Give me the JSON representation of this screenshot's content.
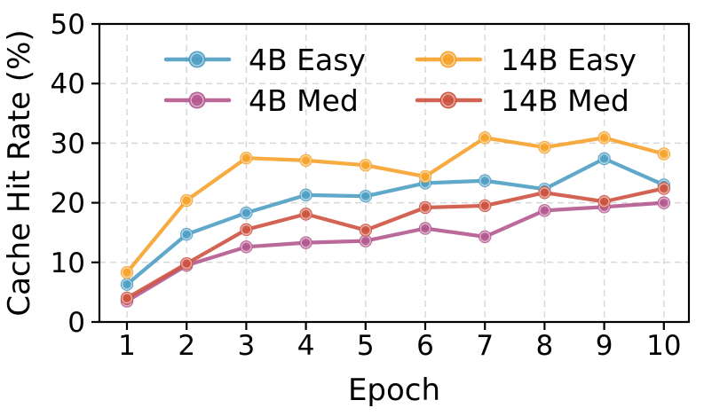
{
  "chart_data": {
    "type": "line",
    "title": "",
    "xlabel": "Epoch",
    "ylabel": "Cache Hit Rate (%)",
    "x": [
      1,
      2,
      3,
      4,
      5,
      6,
      7,
      8,
      9,
      10
    ],
    "xtick_labels": [
      "1",
      "2",
      "3",
      "4",
      "5",
      "6",
      "7",
      "8",
      "9",
      "10"
    ],
    "yticks": [
      0,
      10,
      20,
      30,
      40,
      50
    ],
    "ytick_labels": [
      "0",
      "10",
      "20",
      "30",
      "40",
      "50"
    ],
    "grid_y_values": [
      10,
      20,
      30,
      40
    ],
    "ylim": [
      0,
      50
    ],
    "grid": "dashed light-gray on both axes",
    "legend": {
      "position": "upper center, inside plot",
      "columns": 2,
      "frame": false
    },
    "series": [
      {
        "name": "4B Easy",
        "color": "#4F9EC4",
        "values": [
          6.3,
          14.7,
          18.3,
          21.3,
          21.1,
          23.3,
          23.7,
          22.3,
          27.4,
          23.0
        ]
      },
      {
        "name": "4B Med",
        "color": "#B4588F",
        "values": [
          3.5,
          9.5,
          12.6,
          13.3,
          13.6,
          15.7,
          14.3,
          18.7,
          19.3,
          20.0
        ]
      },
      {
        "name": "14B Easy",
        "color": "#F6A22B",
        "values": [
          8.3,
          20.4,
          27.5,
          27.1,
          26.3,
          24.4,
          30.9,
          29.3,
          30.9,
          28.2
        ]
      },
      {
        "name": "14B Med",
        "color": "#CE5340",
        "values": [
          4.0,
          9.8,
          15.5,
          18.1,
          15.4,
          19.2,
          19.5,
          21.7,
          20.2,
          22.4
        ]
      }
    ],
    "axis_color": "#000000",
    "grid_color": "#d8d8d8",
    "background": "#ffffff"
  }
}
